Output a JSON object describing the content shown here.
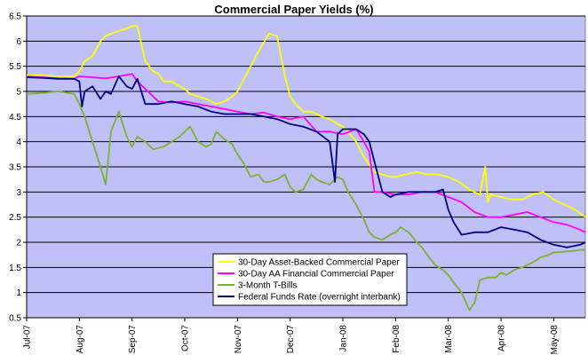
{
  "chart_data": {
    "type": "line",
    "title": "Commercial Paper Yields (%)",
    "xlabel": "",
    "ylabel": "",
    "x_tick_labels": [
      "Jul-07",
      "Aug-07",
      "Sep-07",
      "Oct-07",
      "Nov-07",
      "Dec-07",
      "Jan-08",
      "Feb-08",
      "Mar-08",
      "Apr-08",
      "May-08"
    ],
    "y_ticks": [
      "0.5",
      "1",
      "1.5",
      "2",
      "2.5",
      "3",
      "3.5",
      "4",
      "4.5",
      "5",
      "5.5",
      "6",
      "6.5"
    ],
    "ylim": [
      0.5,
      6.5
    ],
    "xlim": [
      0,
      10.6
    ],
    "grid": "horizontal",
    "legend_position": "bottom-center",
    "background": "#c0c0f8",
    "series": [
      {
        "name": "30-Day Asset-Backed Commercial Paper",
        "color": "#ffff00",
        "x": [
          0,
          0.3,
          0.6,
          0.9,
          1.0,
          1.1,
          1.25,
          1.4,
          1.5,
          1.6,
          1.75,
          1.9,
          2.0,
          2.1,
          2.25,
          2.4,
          2.5,
          2.6,
          2.75,
          2.9,
          3.0,
          3.1,
          3.25,
          3.4,
          3.5,
          3.6,
          3.75,
          3.9,
          4.0,
          4.2,
          4.4,
          4.6,
          4.75,
          4.9,
          5.0,
          5.1,
          5.25,
          5.4,
          5.5,
          5.6,
          5.75,
          5.9,
          6.0,
          6.1,
          6.25,
          6.4,
          6.5,
          6.6,
          6.75,
          6.9,
          7.0,
          7.2,
          7.4,
          7.6,
          7.8,
          8.0,
          8.2,
          8.4,
          8.6,
          8.7,
          8.75,
          8.8,
          9.0,
          9.2,
          9.4,
          9.6,
          9.8,
          10.0,
          10.2,
          10.4,
          10.6
        ],
        "y": [
          5.32,
          5.32,
          5.3,
          5.3,
          5.4,
          5.6,
          5.7,
          6.0,
          6.1,
          6.15,
          6.2,
          6.25,
          6.3,
          6.3,
          5.6,
          5.4,
          5.35,
          5.2,
          5.2,
          5.1,
          5.05,
          4.95,
          4.9,
          4.85,
          4.8,
          4.75,
          4.8,
          4.9,
          5.0,
          5.4,
          5.8,
          6.15,
          6.1,
          5.3,
          4.9,
          4.75,
          4.6,
          4.6,
          4.55,
          4.5,
          4.45,
          4.35,
          4.3,
          4.2,
          4.0,
          3.7,
          3.55,
          3.4,
          3.35,
          3.3,
          3.3,
          3.35,
          3.4,
          3.35,
          3.35,
          3.3,
          3.2,
          3.05,
          2.95,
          3.5,
          2.8,
          2.95,
          2.9,
          2.85,
          2.85,
          2.95,
          3.0,
          2.85,
          2.75,
          2.65,
          2.5
        ]
      },
      {
        "name": "30-Day AA Financial Commercial Paper",
        "color": "#ff00ff",
        "x": [
          0,
          0.3,
          0.6,
          0.9,
          1.0,
          1.25,
          1.5,
          1.75,
          2.0,
          2.1,
          2.25,
          2.4,
          2.5,
          2.75,
          3.0,
          3.25,
          3.5,
          3.75,
          4.0,
          4.25,
          4.5,
          4.75,
          5.0,
          5.25,
          5.5,
          5.75,
          6.0,
          6.25,
          6.4,
          6.5,
          6.6,
          6.75,
          7.0,
          7.25,
          7.5,
          7.75,
          8.0,
          8.25,
          8.5,
          8.75,
          9.0,
          9.25,
          9.5,
          9.75,
          10.0,
          10.25,
          10.5,
          10.6
        ],
        "y": [
          5.3,
          5.28,
          5.26,
          5.25,
          5.3,
          5.28,
          5.26,
          5.3,
          5.35,
          5.2,
          5.05,
          4.9,
          4.8,
          4.78,
          4.8,
          4.75,
          4.7,
          4.65,
          4.6,
          4.55,
          4.58,
          4.5,
          4.45,
          4.5,
          4.2,
          4.2,
          4.15,
          4.25,
          4.0,
          3.8,
          3.0,
          3.0,
          2.95,
          2.95,
          3.0,
          3.0,
          2.9,
          2.8,
          2.6,
          2.5,
          2.5,
          2.55,
          2.6,
          2.5,
          2.4,
          2.35,
          2.25,
          2.2
        ]
      },
      {
        "name": "3-Month T-Bills",
        "color": "#80b030",
        "x": [
          0,
          0.3,
          0.6,
          0.9,
          1.0,
          1.1,
          1.25,
          1.4,
          1.5,
          1.6,
          1.75,
          1.9,
          2.0,
          2.1,
          2.25,
          2.4,
          2.6,
          2.75,
          2.9,
          3.0,
          3.1,
          3.25,
          3.4,
          3.5,
          3.6,
          3.75,
          3.9,
          4.0,
          4.1,
          4.25,
          4.4,
          4.5,
          4.6,
          4.75,
          4.9,
          5.0,
          5.1,
          5.25,
          5.4,
          5.5,
          5.6,
          5.75,
          5.9,
          6.0,
          6.1,
          6.25,
          6.4,
          6.5,
          6.6,
          6.75,
          6.9,
          7.0,
          7.1,
          7.25,
          7.4,
          7.5,
          7.6,
          7.75,
          7.9,
          8.0,
          8.1,
          8.25,
          8.4,
          8.5,
          8.6,
          8.75,
          8.9,
          9.0,
          9.1,
          9.25,
          9.4,
          9.5,
          9.6,
          9.75,
          9.9,
          10.0,
          10.1,
          10.25,
          10.4,
          10.5,
          10.6
        ],
        "y": [
          4.95,
          4.97,
          5.0,
          4.95,
          4.75,
          4.5,
          4.0,
          3.5,
          3.15,
          4.2,
          4.6,
          4.1,
          3.9,
          4.1,
          4.0,
          3.85,
          3.9,
          4.0,
          4.1,
          4.2,
          4.3,
          4.0,
          3.9,
          3.95,
          4.2,
          4.05,
          3.95,
          3.75,
          3.6,
          3.3,
          3.35,
          3.2,
          3.2,
          3.25,
          3.35,
          3.1,
          3.0,
          3.05,
          3.35,
          3.25,
          3.2,
          3.15,
          3.3,
          3.25,
          3.0,
          2.75,
          2.45,
          2.2,
          2.1,
          2.05,
          2.15,
          2.2,
          2.3,
          2.2,
          2.0,
          1.9,
          1.75,
          1.55,
          1.45,
          1.35,
          1.2,
          1.0,
          0.65,
          0.8,
          1.25,
          1.3,
          1.3,
          1.4,
          1.35,
          1.45,
          1.5,
          1.55,
          1.6,
          1.7,
          1.75,
          1.8,
          1.8,
          1.82,
          1.83,
          1.85,
          1.85
        ]
      },
      {
        "name": "Federal Funds Rate (overnight interbank)",
        "color": "#000080",
        "x": [
          0,
          0.3,
          0.6,
          0.9,
          1.0,
          1.05,
          1.1,
          1.25,
          1.4,
          1.5,
          1.6,
          1.75,
          1.9,
          2.0,
          2.1,
          2.25,
          2.5,
          2.75,
          3.0,
          3.25,
          3.5,
          3.75,
          4.0,
          4.25,
          4.5,
          4.75,
          5.0,
          5.25,
          5.5,
          5.75,
          5.85,
          5.9,
          6.0,
          6.25,
          6.4,
          6.5,
          6.6,
          6.75,
          6.9,
          7.0,
          7.25,
          7.5,
          7.75,
          7.9,
          8.0,
          8.1,
          8.25,
          8.5,
          8.75,
          9.0,
          9.25,
          9.5,
          9.75,
          10.0,
          10.25,
          10.5,
          10.6
        ],
        "y": [
          5.28,
          5.27,
          5.25,
          5.25,
          5.2,
          4.7,
          5.0,
          5.1,
          4.85,
          5.0,
          4.95,
          5.3,
          5.1,
          5.05,
          5.25,
          4.75,
          4.75,
          4.8,
          4.75,
          4.7,
          4.6,
          4.55,
          4.55,
          4.55,
          4.5,
          4.45,
          4.35,
          4.3,
          4.2,
          4.0,
          3.2,
          4.15,
          4.25,
          4.25,
          4.15,
          4.0,
          3.6,
          3.0,
          2.9,
          2.95,
          3.0,
          3.0,
          3.0,
          3.05,
          2.65,
          2.4,
          2.15,
          2.2,
          2.2,
          2.3,
          2.25,
          2.2,
          2.05,
          1.95,
          1.9,
          1.95,
          2.0
        ]
      }
    ]
  }
}
